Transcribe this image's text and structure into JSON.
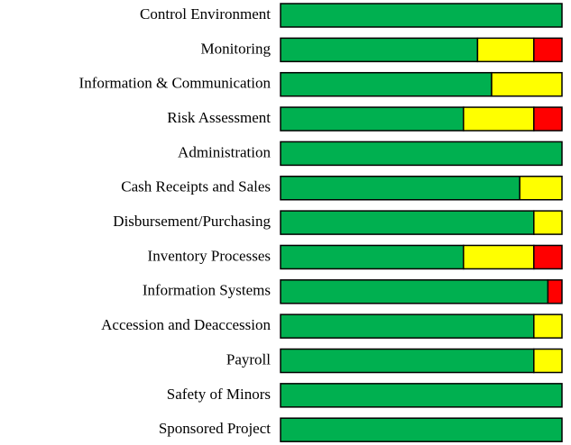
{
  "chart_data": {
    "type": "stacked-barh",
    "categories": [
      "Control Environment",
      "Monitoring",
      "Information & Communication",
      "Risk Assessment",
      "Administration",
      "Cash Receipts and Sales",
      "Disbursement/Purchasing",
      "Inventory Processes",
      "Information Systems",
      "Accession and Deaccession",
      "Payroll",
      "Safety of Minors",
      "Sponsored Project"
    ],
    "series": [
      {
        "color": "#00b050",
        "values": [
          100,
          70,
          75,
          65,
          100,
          85,
          90,
          65,
          95,
          90,
          90,
          100,
          100
        ]
      },
      {
        "color": "#ffff00",
        "values": [
          0,
          20,
          25,
          25,
          0,
          15,
          10,
          25,
          0,
          10,
          10,
          0,
          0
        ]
      },
      {
        "color": "#ff0000",
        "values": [
          0,
          10,
          0,
          10,
          0,
          0,
          0,
          10,
          5,
          0,
          0,
          0,
          0
        ]
      }
    ],
    "xlim": [
      0,
      100
    ]
  }
}
